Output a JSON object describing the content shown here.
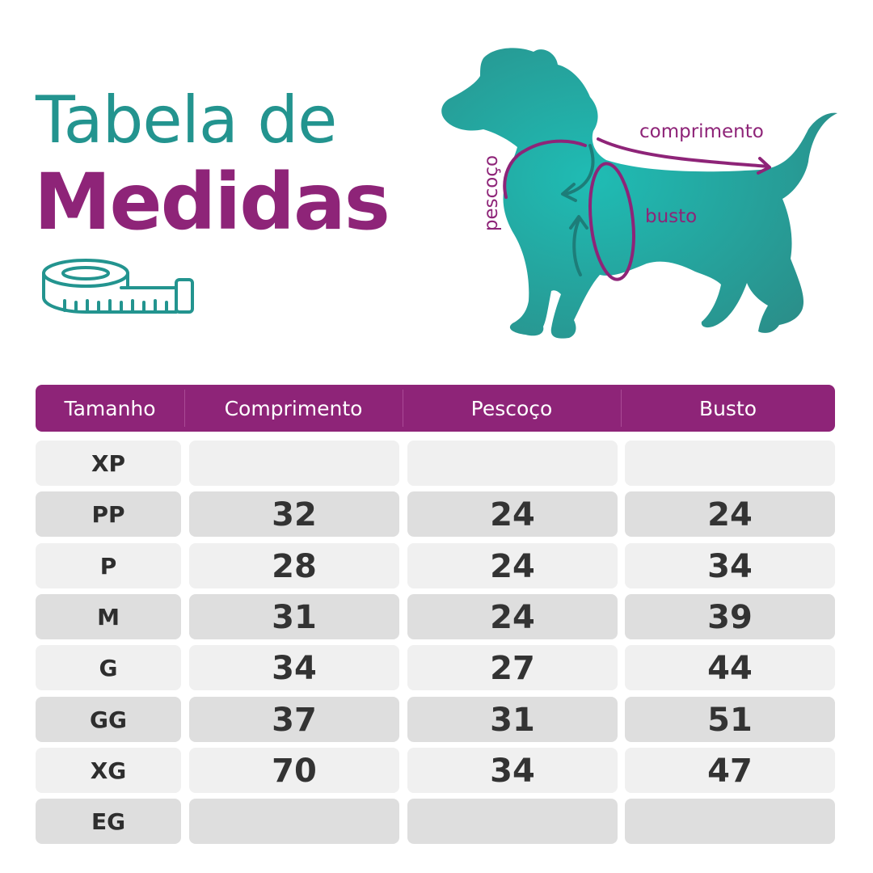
{
  "title": {
    "line1": "Tabela de",
    "line2": "Medidas"
  },
  "colors": {
    "teal": "#23948f",
    "purple": "#8e2478",
    "row_light": "#f0f0f0",
    "row_dark": "#dedede"
  },
  "illustration": {
    "icons": [
      "measuring-tape-icon",
      "dog-silhouette"
    ],
    "labels": {
      "comprimento": "comprimento",
      "pescoco": "pescoço",
      "busto": "busto"
    }
  },
  "table": {
    "headers": [
      "Tamanho",
      "Comprimento",
      "Pescoço",
      "Busto"
    ],
    "rows": [
      {
        "size": "XP",
        "comprimento": "",
        "pescoco": "",
        "busto": ""
      },
      {
        "size": "PP",
        "comprimento": "32",
        "pescoco": "24",
        "busto": "24"
      },
      {
        "size": "P",
        "comprimento": "28",
        "pescoco": "24",
        "busto": "34"
      },
      {
        "size": "M",
        "comprimento": "31",
        "pescoco": "24",
        "busto": "39"
      },
      {
        "size": "G",
        "comprimento": "34",
        "pescoco": "27",
        "busto": "44"
      },
      {
        "size": "GG",
        "comprimento": "37",
        "pescoco": "31",
        "busto": "51"
      },
      {
        "size": "XG",
        "comprimento": "70",
        "pescoco": "34",
        "busto": "47"
      },
      {
        "size": "EG",
        "comprimento": "",
        "pescoco": "",
        "busto": ""
      }
    ]
  }
}
